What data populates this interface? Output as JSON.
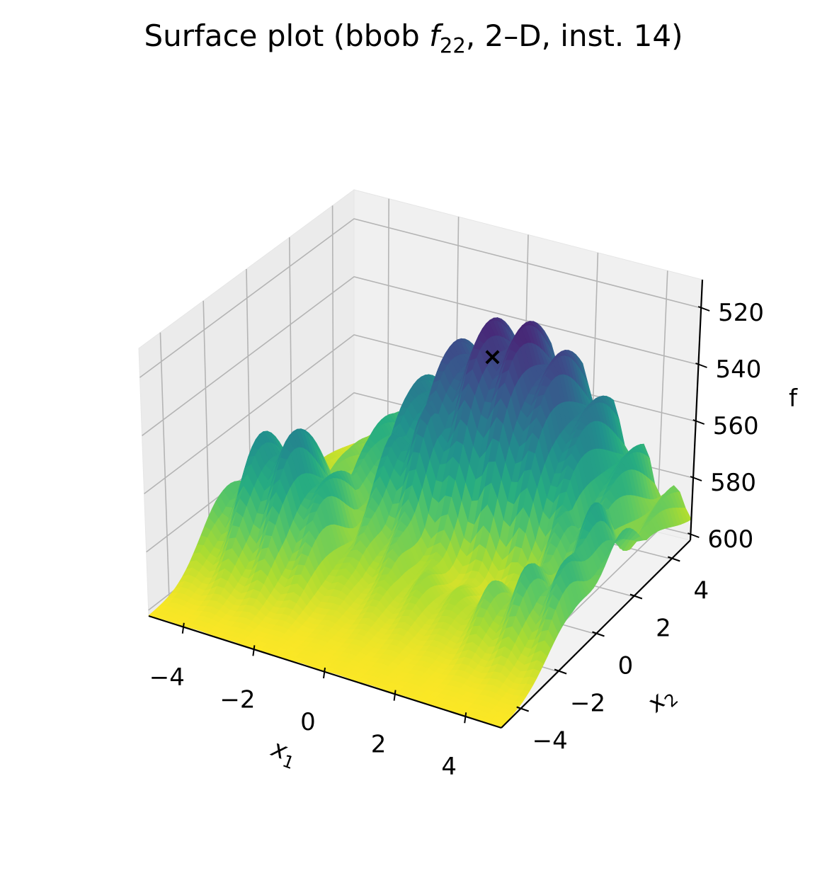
{
  "chart_data": {
    "type": "surface",
    "title_pre": "Surface plot (bbob ",
    "title_fn": "f",
    "title_sub": "22",
    "title_post": ", 2–D, inst. 14)",
    "xlabel": "x",
    "xlabel_sub": "1",
    "ylabel": "x",
    "ylabel_sub": "2",
    "zlabel": "f",
    "xlim": [
      -5,
      5
    ],
    "ylim": [
      -5,
      5
    ],
    "zlim": [
      510,
      602
    ],
    "zaxis_inverted": true,
    "x_ticks": [
      -4,
      -2,
      0,
      2,
      4
    ],
    "y_ticks": [
      -4,
      -2,
      0,
      2,
      4
    ],
    "z_ticks": [
      520,
      540,
      560,
      580,
      600
    ],
    "x_tick_labels": [
      "−4",
      "−2",
      "0",
      "2",
      "4"
    ],
    "y_tick_labels": [
      "−4",
      "−2",
      "0",
      "2",
      "4"
    ],
    "z_tick_labels": [
      "520",
      "540",
      "560",
      "580",
      "600"
    ],
    "colormap": "viridis",
    "grid": true,
    "optimum_marker": {
      "x": 0.2,
      "y": 3.0,
      "z": 540,
      "symbol": "×",
      "color": "#ffffff"
    },
    "features": [
      "plateaus near f≈525–545 on the far side",
      "a long low trough running along x2≈0 near f≈600",
      "dense high-frequency ripples on all plateaus"
    ]
  }
}
